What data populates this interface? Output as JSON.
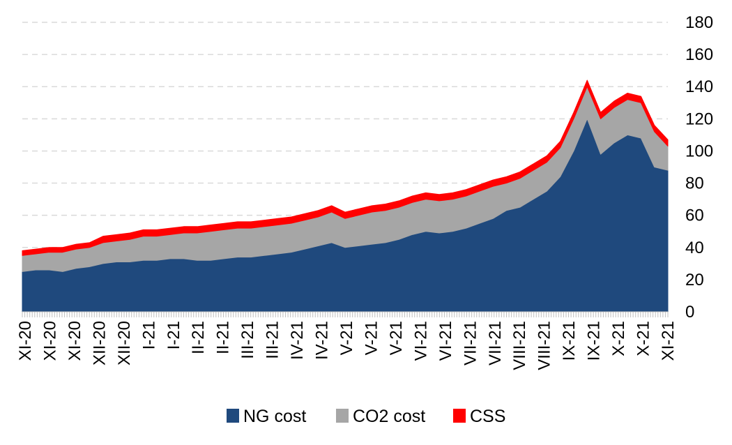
{
  "chart_data": {
    "type": "area",
    "stacked": true,
    "ylim": [
      0,
      180
    ],
    "yticks": [
      0,
      20,
      40,
      60,
      80,
      100,
      120,
      140,
      160,
      180
    ],
    "y_axis_side": "right",
    "grid": "horizontal-dashed",
    "legend": "bottom",
    "x_tick_labels": [
      "XI-20",
      "XI-20",
      "XI-20",
      "XII-20",
      "XII-20",
      "I-21",
      "I-21",
      "II-21",
      "II-21",
      "III-21",
      "III-21",
      "IV-21",
      "IV-21",
      "V-21",
      "V-21",
      "V-21",
      "VI-21",
      "VI-21",
      "VII-21",
      "VII-21",
      "VIII-21",
      "VIII-21",
      "IX-21",
      "IX-21",
      "X-21",
      "X-21",
      "XI-21"
    ],
    "series": [
      {
        "name": "NG cost",
        "color": "#1f497d",
        "values": [
          25,
          26,
          26,
          25,
          27,
          28,
          30,
          31,
          31,
          32,
          32,
          33,
          33,
          32,
          32,
          33,
          34,
          34,
          35,
          36,
          37,
          39,
          41,
          43,
          40,
          41,
          42,
          43,
          45,
          48,
          50,
          49,
          50,
          52,
          55,
          58,
          63,
          65,
          70,
          75,
          84,
          100,
          120,
          98,
          105,
          110,
          108,
          90,
          88
        ]
      },
      {
        "name": "CO2 cost",
        "color": "#a6a6a6",
        "values": [
          10,
          10,
          11,
          12,
          12,
          12,
          13,
          13,
          14,
          15,
          15,
          15,
          16,
          17,
          18,
          18,
          18,
          18,
          18,
          18,
          18,
          18,
          18,
          19,
          18,
          19,
          20,
          20,
          20,
          20,
          20,
          20,
          20,
          20,
          20,
          20,
          17,
          18,
          18,
          18,
          18,
          20,
          20,
          22,
          22,
          22,
          22,
          22,
          15
        ]
      },
      {
        "name": "CSS",
        "color": "#ff0000",
        "values": [
          3,
          3,
          3,
          3,
          3,
          3,
          4,
          4,
          4,
          4,
          4,
          4,
          4,
          4,
          4,
          4,
          4,
          4,
          4,
          4,
          4,
          4,
          4,
          4,
          4,
          4,
          4,
          4,
          4,
          4,
          4,
          4,
          4,
          4,
          4,
          4,
          4,
          4,
          4,
          4,
          4,
          4,
          4,
          4,
          4,
          4,
          4,
          4,
          4
        ]
      }
    ]
  }
}
